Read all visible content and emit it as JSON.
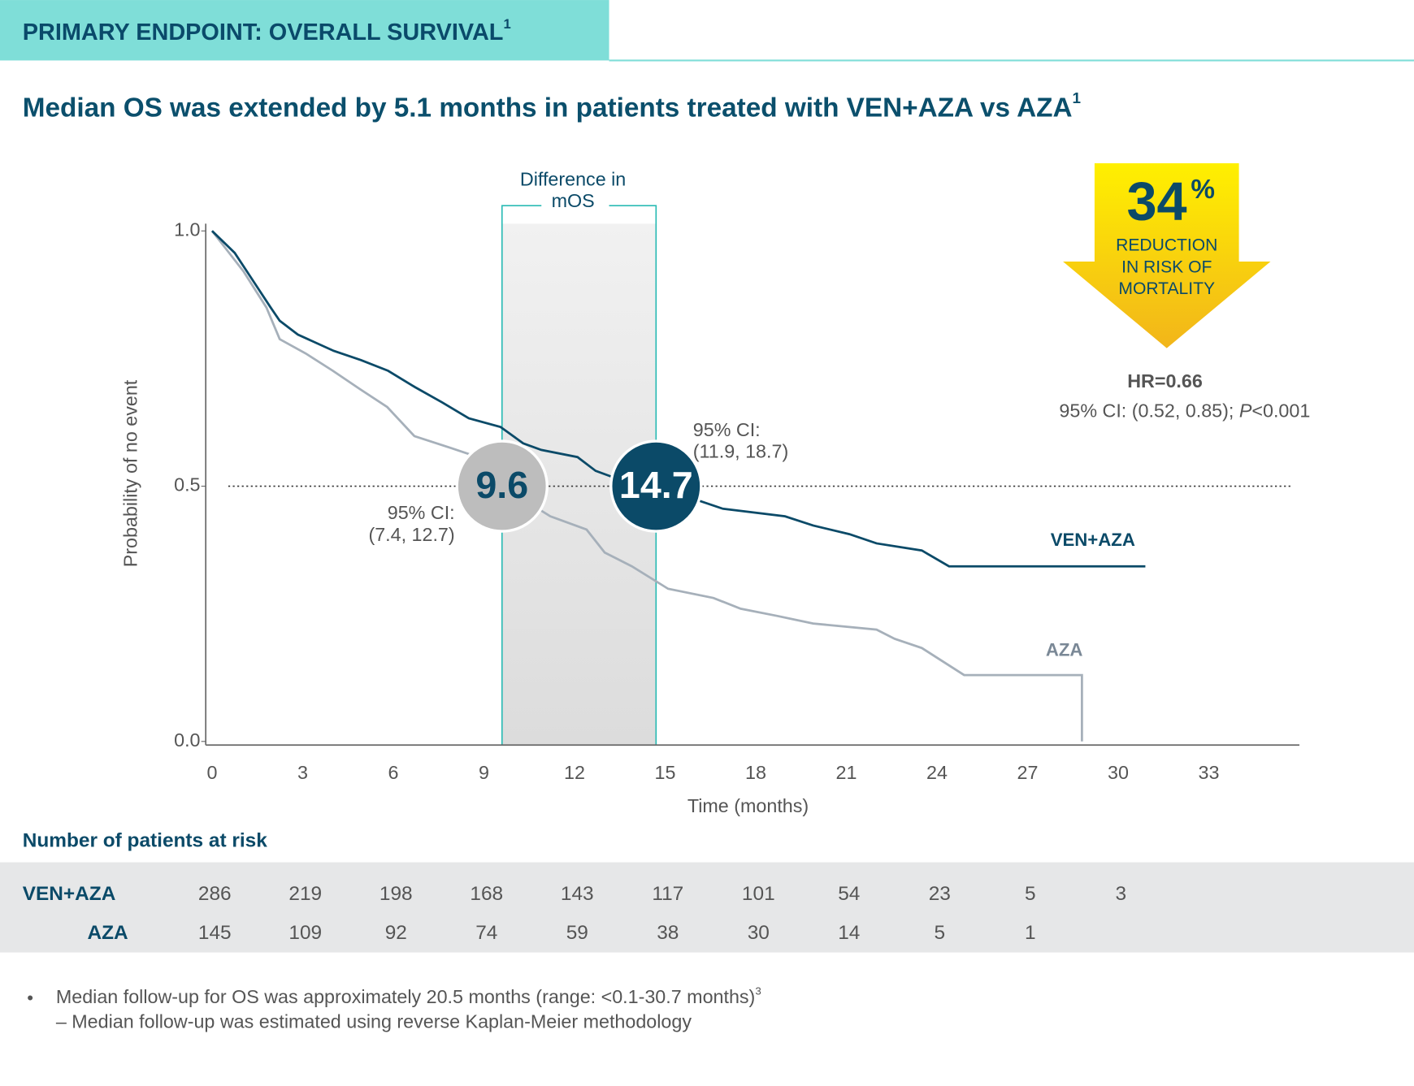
{
  "header": {
    "title": "PRIMARY ENDPOINT: OVERALL SURVIVAL",
    "title_sup": "1",
    "subtitle": "Median OS was extended by 5.1 months in patients treated with VEN+AZA vs AZA",
    "subtitle_sup": "1"
  },
  "chart_data": {
    "type": "line",
    "x_label": "Time (months)",
    "y_label": "Probability of no event",
    "xlim": [
      0,
      36
    ],
    "xticks": [
      0,
      3,
      6,
      9,
      12,
      15,
      18,
      21,
      24,
      27,
      30,
      33
    ],
    "ylim": [
      0,
      1
    ],
    "yticks": [
      {
        "value": 0,
        "label": "0.0"
      },
      {
        "value": 0.5,
        "label": "0.5"
      },
      {
        "value": 1,
        "label": "1.0"
      }
    ],
    "reference_line": 0.5,
    "band_label": [
      "Difference in",
      "mOS"
    ],
    "series": [
      {
        "name": "VEN+AZA",
        "color": "#0b4a68",
        "median": 14.7,
        "ci_label": "95% CI:",
        "ci": "(11.9, 18.7)",
        "x": [
          0,
          0.75,
          1.34,
          1.94,
          2.24,
          2.84,
          4.03,
          4.93,
          5.83,
          6.72,
          7.62,
          8.5,
          9.55,
          10.3,
          10.9,
          12.1,
          12.7,
          13.9,
          15.7,
          16.9,
          18.97,
          19.9,
          21.1,
          22.0,
          23.5,
          24.4,
          30.9
        ],
        "values": [
          1.0,
          0.957,
          0.904,
          0.85,
          0.824,
          0.797,
          0.765,
          0.747,
          0.726,
          0.694,
          0.664,
          0.633,
          0.616,
          0.584,
          0.571,
          0.557,
          0.53,
          0.504,
          0.48,
          0.456,
          0.441,
          0.423,
          0.406,
          0.388,
          0.374,
          0.343,
          0.343
        ]
      },
      {
        "name": "AZA",
        "color": "#a6b0ba",
        "median": 9.6,
        "ci_label": "95% CI:",
        "ci": "(7.4, 12.7)",
        "x": [
          0,
          1.05,
          1.8,
          2.24,
          3.1,
          4.0,
          4.9,
          5.8,
          6.7,
          7.9,
          8.8,
          9.6,
          11.2,
          12.4,
          13.0,
          13.9,
          15.1,
          16.6,
          17.5,
          18.7,
          19.9,
          22.0,
          22.6,
          23.5,
          24.9,
          28.8,
          28.8
        ],
        "values": [
          1.0,
          0.92,
          0.85,
          0.788,
          0.76,
          0.726,
          0.69,
          0.655,
          0.598,
          0.575,
          0.557,
          0.5,
          0.441,
          0.415,
          0.37,
          0.343,
          0.299,
          0.281,
          0.26,
          0.246,
          0.231,
          0.219,
          0.201,
          0.183,
          0.13,
          0.13,
          0.0
        ]
      }
    ]
  },
  "callout": {
    "value": "34",
    "unit": "%",
    "lines": [
      "REDUCTION",
      "IN RISK OF",
      "MORTALITY"
    ],
    "hr": "HR=0.66",
    "ci_prefix": "95% CI: (0.52, 0.85); ",
    "p": "P",
    "p_value": "<0.001"
  },
  "risk_table": {
    "title": "Number of patients at risk",
    "rows": [
      {
        "name": "VEN+AZA",
        "values": [
          "286",
          "219",
          "198",
          "168",
          "143",
          "117",
          "101",
          "54",
          "23",
          "5",
          "3"
        ]
      },
      {
        "name": "AZA",
        "values": [
          "145",
          "109",
          "92",
          "74",
          "59",
          "38",
          "30",
          "14",
          "5",
          "1"
        ]
      }
    ]
  },
  "footnotes": [
    {
      "text": "Median follow-up for OS was approximately 20.5 months (range: <0.1-30.7 months)",
      "sup": "3"
    },
    {
      "text": "– Median follow-up was estimated using reverse Kaplan-Meier methodology"
    }
  ]
}
